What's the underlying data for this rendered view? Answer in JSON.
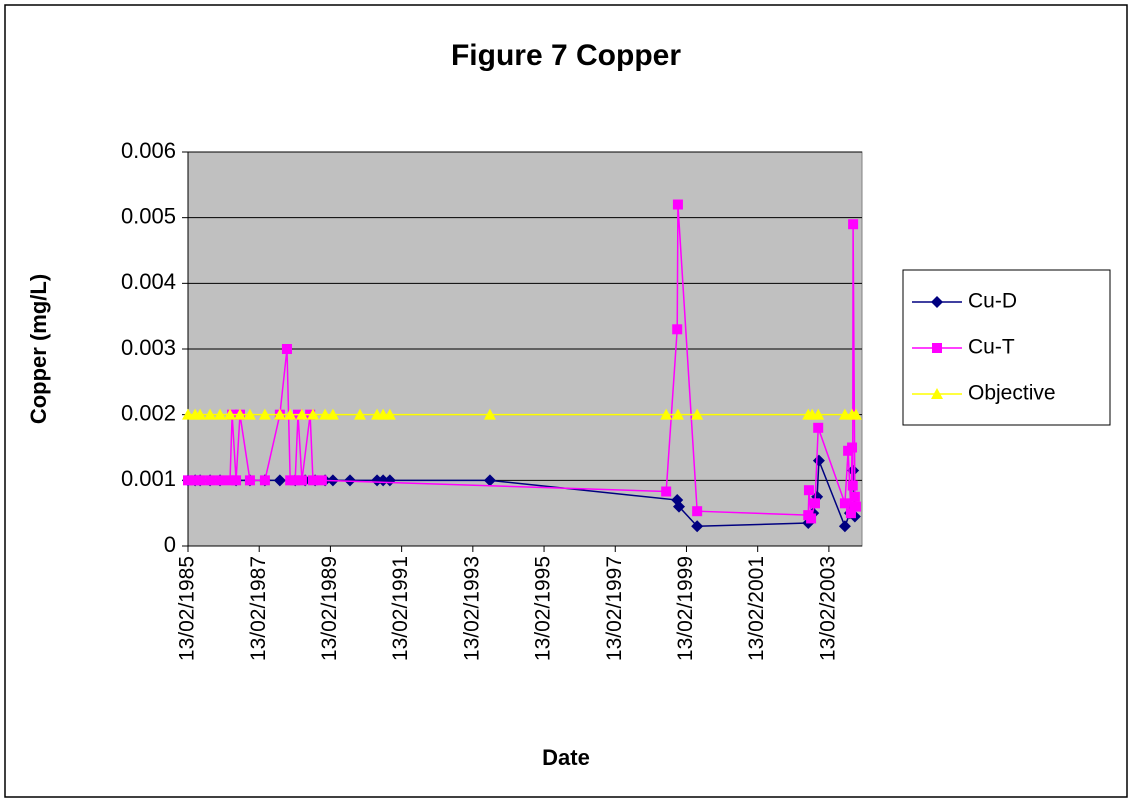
{
  "chart_data": {
    "type": "line",
    "title": "Figure 7 Copper",
    "x_label": "Date",
    "y_label": "Copper (mg/L)",
    "xlim": [
      1985.12,
      2004.05
    ],
    "xticks": [
      {
        "value": 1985.12,
        "label": "13/02/1985"
      },
      {
        "value": 1987.12,
        "label": "13/02/1987"
      },
      {
        "value": 1989.12,
        "label": "13/02/1989"
      },
      {
        "value": 1991.12,
        "label": "13/02/1991"
      },
      {
        "value": 1993.12,
        "label": "13/02/1993"
      },
      {
        "value": 1995.12,
        "label": "13/02/1995"
      },
      {
        "value": 1997.12,
        "label": "13/02/1997"
      },
      {
        "value": 1999.12,
        "label": "13/02/1999"
      },
      {
        "value": 2001.12,
        "label": "13/02/2001"
      },
      {
        "value": 2003.12,
        "label": "13/02/2003"
      }
    ],
    "ylim": [
      0,
      0.006
    ],
    "yticks": [
      0,
      0.001,
      0.002,
      0.003,
      0.004,
      0.005,
      0.006
    ],
    "grid": true,
    "legend": "right",
    "series": [
      {
        "name": "Cu-D",
        "color": "#000080",
        "marker": "diamond",
        "x": [
          1985.12,
          1985.32,
          1985.46,
          1985.74,
          1986.02,
          1986.47,
          1986.86,
          1987.28,
          1987.7,
          1988.13,
          1988.41,
          1988.69,
          1988.97,
          1989.19,
          1989.67,
          1990.43,
          1990.6,
          1990.79,
          1993.6,
          1998.86,
          1998.91,
          1999.42,
          2002.54,
          2002.68,
          2002.79,
          2002.84,
          2003.57,
          2003.71,
          2003.8,
          2003.85
        ],
        "values": [
          0.001,
          0.001,
          0.001,
          0.001,
          0.001,
          0.001,
          0.001,
          0.001,
          0.001,
          0.001,
          0.001,
          0.001,
          0.001,
          0.001,
          0.001,
          0.001,
          0.001,
          0.001,
          0.001,
          0.0007,
          0.0006,
          0.0003,
          0.00035,
          0.0005,
          0.00075,
          0.0013,
          0.0003,
          0.0005,
          0.00115,
          0.00045
        ]
      },
      {
        "name": "Cu-T",
        "color": "#ff00ff",
        "marker": "square",
        "x": [
          1985.12,
          1985.32,
          1985.46,
          1985.74,
          1986.02,
          1986.3,
          1986.36,
          1986.47,
          1986.58,
          1986.86,
          1987.28,
          1987.7,
          1987.9,
          1987.99,
          1988.13,
          1988.21,
          1988.32,
          1988.55,
          1988.63,
          1988.88,
          1998.55,
          1998.86,
          1998.88,
          1999.42,
          2002.54,
          2002.56,
          2002.62,
          2002.73,
          2002.82,
          2003.57,
          2003.66,
          2003.74,
          2003.77,
          2003.79,
          2003.8,
          2003.85,
          2003.88
        ],
        "values": [
          0.001,
          0.001,
          0.001,
          0.001,
          0.001,
          0.001,
          0.002,
          0.001,
          0.002,
          0.001,
          0.001,
          0.002,
          0.003,
          0.001,
          0.001,
          0.002,
          0.001,
          0.002,
          0.001,
          0.001,
          0.00083,
          0.0033,
          0.0052,
          0.00053,
          0.00047,
          0.00085,
          0.00042,
          0.00065,
          0.0018,
          0.00065,
          0.00145,
          0.0005,
          0.0015,
          0.00092,
          0.0049,
          0.00075,
          0.0006
        ]
      },
      {
        "name": "Objective",
        "color": "#ffff00",
        "marker": "triangle",
        "x": [
          1985.12,
          1985.32,
          1985.46,
          1985.74,
          1986.02,
          1986.3,
          1986.58,
          1986.86,
          1987.28,
          1987.7,
          1987.99,
          1988.32,
          1988.63,
          1988.97,
          1989.19,
          1989.95,
          1990.43,
          1990.6,
          1990.79,
          1993.6,
          1998.55,
          1998.88,
          1999.42,
          2002.54,
          2002.65,
          2002.82,
          2003.57,
          2003.77,
          2003.88
        ],
        "values": [
          0.002,
          0.002,
          0.002,
          0.002,
          0.002,
          0.002,
          0.002,
          0.002,
          0.002,
          0.002,
          0.002,
          0.002,
          0.002,
          0.002,
          0.002,
          0.002,
          0.002,
          0.002,
          0.002,
          0.002,
          0.002,
          0.002,
          0.002,
          0.002,
          0.002,
          0.002,
          0.002,
          0.002,
          0.002
        ]
      }
    ]
  }
}
